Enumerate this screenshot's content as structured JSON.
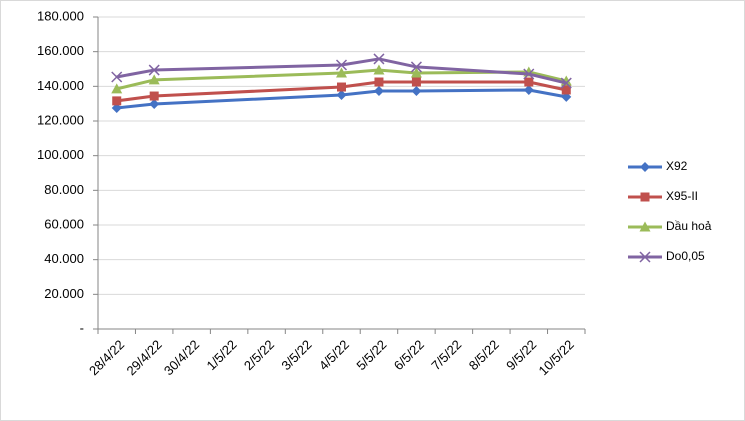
{
  "chart_data": {
    "type": "line",
    "xticks": [
      "28/4/22",
      "29/4/22",
      "30/4/22",
      "1/5/22",
      "2/5/22",
      "3/5/22",
      "4/5/22",
      "5/5/22",
      "6/5/22",
      "7/5/22",
      "8/5/22",
      "9/5/22",
      "10/5/22"
    ],
    "x": [
      "28/4/22",
      "29/4/22",
      "4/5/22",
      "5/5/22",
      "6/5/22",
      "9/5/22",
      "10/5/22"
    ],
    "series": [
      {
        "name": "X92",
        "color": "#4472c4",
        "marker": "diamond",
        "values": [
          127500,
          129800,
          135000,
          137300,
          137300,
          137900,
          133900
        ]
      },
      {
        "name": "X95-II",
        "color": "#c0504d",
        "marker": "square",
        "values": [
          131600,
          134400,
          139600,
          142500,
          142500,
          142500,
          137900
        ]
      },
      {
        "name": "Dầu hoả",
        "color": "#9bbb59",
        "marker": "triangle",
        "values": [
          138500,
          143700,
          147700,
          149400,
          147700,
          148300,
          143100
        ]
      },
      {
        "name": "Do0,05",
        "color": "#8064a2",
        "marker": "x",
        "values": [
          145400,
          149400,
          152300,
          155800,
          151200,
          147100,
          141900
        ]
      }
    ],
    "ylim": [
      0,
      180000
    ],
    "yticks": [
      {
        "value": 0,
        "label": "-"
      },
      {
        "value": 20000,
        "label": "20.000"
      },
      {
        "value": 40000,
        "label": "40.000"
      },
      {
        "value": 60000,
        "label": "60.000"
      },
      {
        "value": 80000,
        "label": "80.000"
      },
      {
        "value": 100000,
        "label": "100.000"
      },
      {
        "value": 120000,
        "label": "120.000"
      },
      {
        "value": 140000,
        "label": "140.000"
      },
      {
        "value": 160000,
        "label": "160.000"
      },
      {
        "value": 180000,
        "label": "180.000"
      }
    ],
    "grid": true,
    "legend": "right"
  }
}
